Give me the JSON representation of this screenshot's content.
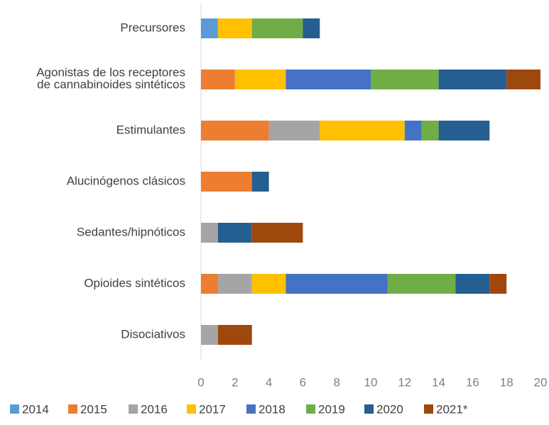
{
  "chart_data": {
    "type": "stacked-barh",
    "categories": [
      "Precursores",
      "Agonistas de los receptores\nde cannabinoides sintéticos",
      "Estimulantes",
      "Alucinógenos clásicos",
      "Sedantes/hipnóticos",
      "Opioides sintéticos",
      "Disociativos"
    ],
    "series": [
      {
        "name": "2014",
        "color": "#5b9bd5",
        "values": [
          1,
          null,
          null,
          null,
          null,
          null,
          null
        ]
      },
      {
        "name": "2015",
        "color": "#ed7d31",
        "values": [
          null,
          2,
          4,
          3,
          null,
          1,
          null
        ]
      },
      {
        "name": "2016",
        "color": "#a5a5a5",
        "values": [
          null,
          null,
          3,
          null,
          1,
          2,
          1
        ]
      },
      {
        "name": "2017",
        "color": "#ffc000",
        "values": [
          2,
          3,
          5,
          null,
          null,
          2,
          null
        ]
      },
      {
        "name": "2018",
        "color": "#4472c4",
        "values": [
          null,
          5,
          1,
          null,
          null,
          6,
          null
        ]
      },
      {
        "name": "2019",
        "color": "#70ad47",
        "values": [
          3,
          4,
          1,
          null,
          null,
          4,
          null
        ]
      },
      {
        "name": "2020",
        "color": "#255e91",
        "values": [
          1,
          4,
          3,
          1,
          2,
          2,
          null
        ]
      },
      {
        "name": "2021*",
        "color": "#9e480e",
        "values": [
          null,
          2,
          null,
          null,
          3,
          1,
          2
        ]
      }
    ],
    "xlim": [
      0,
      20
    ],
    "xticks": [
      0,
      2,
      4,
      6,
      8,
      10,
      12,
      14,
      16,
      18,
      20
    ],
    "legend": "bottom"
  }
}
